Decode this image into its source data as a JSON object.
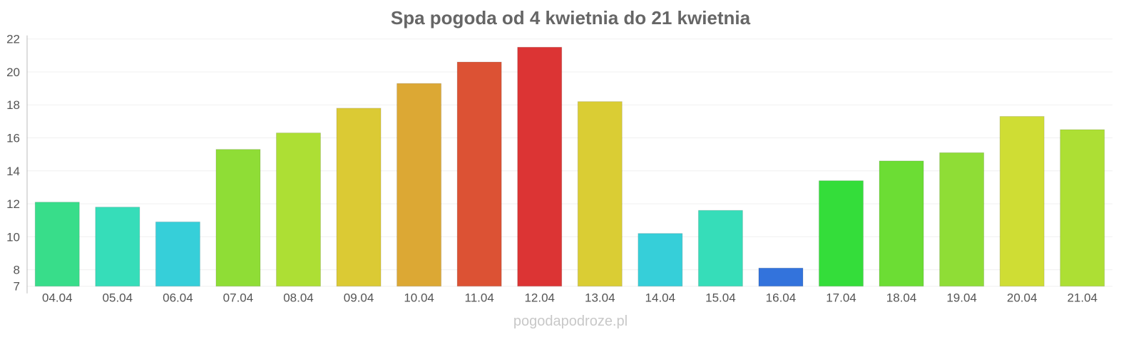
{
  "chart_data": {
    "type": "bar",
    "title": "Spa pogoda od 4 kwietnia do 21 kwietnia",
    "categories": [
      "04.04",
      "05.04",
      "06.04",
      "07.04",
      "08.04",
      "09.04",
      "10.04",
      "11.04",
      "12.04",
      "13.04",
      "14.04",
      "15.04",
      "16.04",
      "17.04",
      "18.04",
      "19.04",
      "20.04",
      "21.04"
    ],
    "values": [
      12.1,
      11.8,
      10.9,
      15.3,
      16.3,
      17.8,
      19.3,
      20.6,
      21.5,
      18.2,
      10.2,
      11.6,
      8.1,
      13.4,
      14.6,
      15.1,
      17.3,
      16.5
    ],
    "colors": [
      "#38dd8a",
      "#36ddb9",
      "#36cfd9",
      "#8fdd36",
      "#addf34",
      "#dbca34",
      "#dca834",
      "#dc5234",
      "#dc3434",
      "#dacd34",
      "#36cfd9",
      "#36ddb9",
      "#3373dc",
      "#34dd3a",
      "#6cdd34",
      "#8fdd36",
      "#cfdd34",
      "#addf34"
    ],
    "yticks": [
      7,
      8,
      10,
      12,
      14,
      16,
      18,
      20,
      22
    ],
    "ylim": [
      7,
      22
    ],
    "xlabel": "",
    "ylabel": "",
    "grid": true
  },
  "footer": "pogodapodroze.pl"
}
